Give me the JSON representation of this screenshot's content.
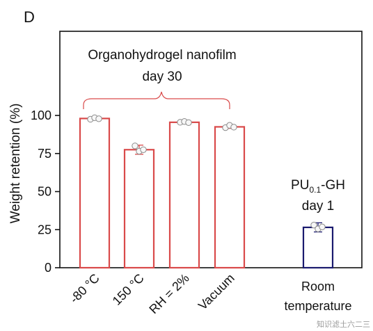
{
  "panel_label": "D",
  "watermark": "知识滤土六二三",
  "chart_data": {
    "type": "bar",
    "ylabel": "Weight retention (%)",
    "ylim": [
      0,
      120
    ],
    "yticks": [
      0,
      25,
      50,
      75,
      100
    ],
    "grid": false,
    "categories": [
      "-80 °C",
      "150 °C",
      "RH = 2%",
      "Vacuum",
      "Room temperature"
    ],
    "values": [
      98,
      77.5,
      95.5,
      92.5,
      26.5
    ],
    "errors": [
      1,
      3,
      0.7,
      1,
      3
    ],
    "points": [
      [
        97.5,
        98.5,
        97.8
      ],
      [
        80,
        76.5,
        77.5
      ],
      [
        95.5,
        96,
        95.3
      ],
      [
        92,
        93.5,
        92.3
      ],
      [
        28,
        25.5,
        26.8
      ]
    ],
    "bar_colors": [
      "#d94a4a",
      "#d94a4a",
      "#d94a4a",
      "#d94a4a",
      "#1a1a6e"
    ],
    "group_annotation": {
      "line1": "Organohydrogel nanofilm",
      "line2": "day 30"
    },
    "single_annotation": {
      "base": "PU",
      "subscript": "0.1",
      "suffix": "-GH",
      "line2": "day 1"
    }
  }
}
